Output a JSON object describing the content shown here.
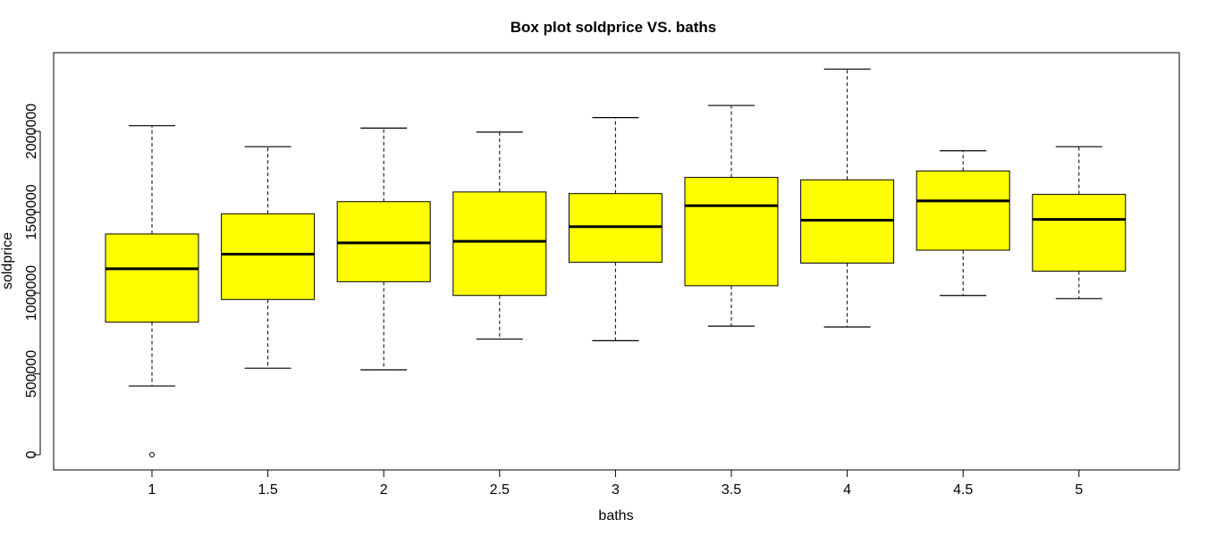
{
  "chart_data": {
    "type": "box",
    "title": "Box plot soldprice VS. baths",
    "xlabel": "baths",
    "ylabel": "soldprice",
    "categories": [
      "1",
      "1.5",
      "2",
      "2.5",
      "3",
      "3.5",
      "4",
      "4.5",
      "5"
    ],
    "yticks": [
      0,
      500000,
      1000000,
      1500000,
      2000000
    ],
    "ytick_labels": [
      "0",
      "500000",
      "1000000",
      "1500000",
      "2000000"
    ],
    "ylim": [
      -80000,
      2490000
    ],
    "box_color": "#ffff00",
    "grid": false,
    "boxes": [
      {
        "category": "1",
        "min": 425000,
        "q1": 820000,
        "median": 1150000,
        "q3": 1365000,
        "max": 2035000,
        "outliers": [
          0
        ]
      },
      {
        "category": "1.5",
        "min": 535000,
        "q1": 960000,
        "median": 1240000,
        "q3": 1490000,
        "max": 1905000,
        "outliers": []
      },
      {
        "category": "2",
        "min": 525000,
        "q1": 1070000,
        "median": 1310000,
        "q3": 1565000,
        "max": 2020000,
        "outliers": []
      },
      {
        "category": "2.5",
        "min": 715000,
        "q1": 985000,
        "median": 1320000,
        "q3": 1625000,
        "max": 1995000,
        "outliers": []
      },
      {
        "category": "3",
        "min": 705000,
        "q1": 1190000,
        "median": 1410000,
        "q3": 1615000,
        "max": 2085000,
        "outliers": []
      },
      {
        "category": "3.5",
        "min": 795000,
        "q1": 1045000,
        "median": 1540000,
        "q3": 1715000,
        "max": 2160000,
        "outliers": []
      },
      {
        "category": "4",
        "min": 790000,
        "q1": 1185000,
        "median": 1450000,
        "q3": 1700000,
        "max": 2385000,
        "outliers": []
      },
      {
        "category": "4.5",
        "min": 985000,
        "q1": 1265000,
        "median": 1570000,
        "q3": 1755000,
        "max": 1880000,
        "outliers": []
      },
      {
        "category": "5",
        "min": 965000,
        "q1": 1135000,
        "median": 1455000,
        "q3": 1610000,
        "max": 1905000,
        "outliers": []
      }
    ]
  }
}
